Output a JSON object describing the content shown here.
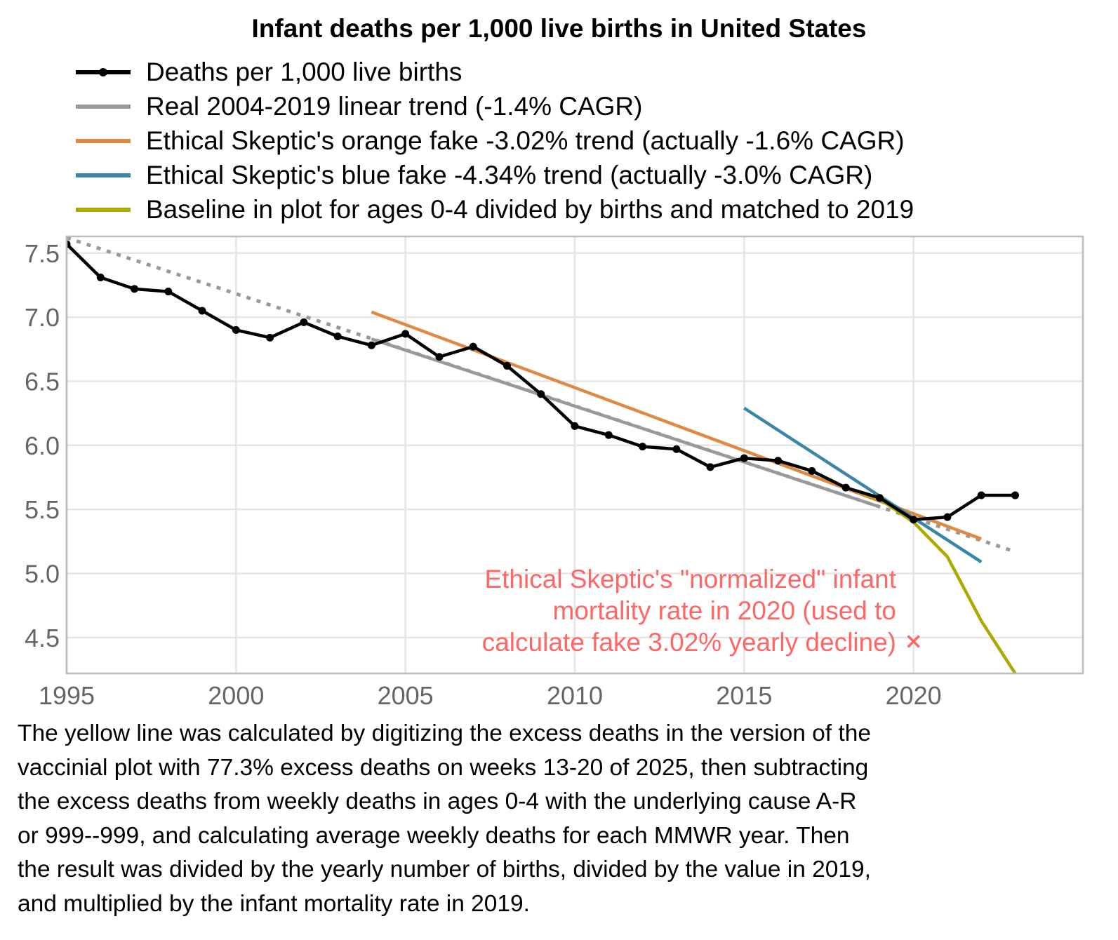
{
  "chart_data": {
    "type": "line",
    "title": "Infant deaths per 1,000 live births in United States",
    "xlabel": "",
    "ylabel": "",
    "xlim": [
      1995,
      2025
    ],
    "ylim": [
      4.22,
      7.63
    ],
    "grid": true,
    "legend_position": "top-left",
    "x_ticks": [
      1995,
      2000,
      2005,
      2010,
      2015,
      2020
    ],
    "x_tick_labels": [
      "1995",
      "2000",
      "2005",
      "2010",
      "2015",
      "2020"
    ],
    "y_ticks": [
      4.5,
      5.0,
      5.5,
      6.0,
      6.5,
      7.0,
      7.5
    ],
    "y_tick_labels": [
      "4.5",
      "5.0",
      "5.5",
      "6.0",
      "6.5",
      "7.0",
      "7.5"
    ],
    "series": [
      {
        "name": "Deaths per 1,000 live births",
        "color": "#000000",
        "style": "line-with-points",
        "x": [
          1995,
          1996,
          1997,
          1998,
          1999,
          2000,
          2001,
          2002,
          2003,
          2004,
          2005,
          2006,
          2007,
          2008,
          2009,
          2010,
          2011,
          2012,
          2013,
          2014,
          2015,
          2016,
          2017,
          2018,
          2019,
          2020,
          2021,
          2022,
          2023
        ],
        "values": [
          7.57,
          7.31,
          7.22,
          7.2,
          7.05,
          6.9,
          6.84,
          6.96,
          6.85,
          6.78,
          6.87,
          6.69,
          6.77,
          6.62,
          6.4,
          6.15,
          6.08,
          5.99,
          5.97,
          5.83,
          5.9,
          5.88,
          5.8,
          5.67,
          5.59,
          5.42,
          5.44,
          5.61,
          5.61
        ]
      },
      {
        "name": "Real 2004-2019 linear trend (-1.4% CAGR)",
        "color": "#999999",
        "style": "solid",
        "x": [
          2004,
          2019
        ],
        "values": [
          6.83,
          5.52
        ]
      },
      {
        "name": "Real 2004-2019 linear trend (extrapolated)",
        "color": "#999999",
        "style": "dotted",
        "legend": false,
        "x": [
          1995,
          2023
        ],
        "values": [
          7.62,
          5.17
        ]
      },
      {
        "name": "Ethical Skeptic's orange fake -3.02% trend (actually -1.6% CAGR)",
        "color": "#DD8A45",
        "style": "solid",
        "x": [
          2004,
          2022
        ],
        "values": [
          7.04,
          5.27
        ]
      },
      {
        "name": "Ethical Skeptic's blue fake -4.34% trend (actually -3.0% CAGR)",
        "color": "#3A86A8",
        "style": "solid",
        "x": [
          2015,
          2022
        ],
        "values": [
          6.29,
          5.09
        ]
      },
      {
        "name": "Baseline in plot for ages 0-4 divided by births and matched to 2019",
        "color": "#AAAA00",
        "style": "solid",
        "x": [
          2018,
          2019,
          2020,
          2021,
          2022,
          2023
        ],
        "values": [
          5.67,
          5.58,
          5.4,
          5.13,
          4.63,
          4.22
        ]
      }
    ],
    "annotations": [
      {
        "type": "marker",
        "symbol": "x",
        "x": 2020,
        "y": 4.47,
        "color": "#FF6666"
      },
      {
        "type": "text",
        "color": "#FF6666",
        "align": "right",
        "lines": [
          "Ethical Skeptic's \"normalized\" infant",
          "mortality rate in 2020 (used to",
          "calculate fake 3.02% yearly decline)"
        ]
      }
    ],
    "legend": [
      {
        "label": "Deaths per 1,000 live births",
        "color": "#000000",
        "point": true
      },
      {
        "label": "Real 2004-2019 linear trend (-1.4% CAGR)",
        "color": "#999999",
        "point": false
      },
      {
        "label": "Ethical Skeptic's orange fake -3.02% trend (actually -1.6% CAGR)",
        "color": "#DD8A45",
        "point": false
      },
      {
        "label": "Ethical Skeptic's blue fake -4.34% trend (actually -3.0% CAGR)",
        "color": "#3A86A8",
        "point": false
      },
      {
        "label": "Baseline in plot for ages 0-4 divided by births and matched to 2019",
        "color": "#AAAA00",
        "point": false
      }
    ],
    "caption": [
      "The yellow line was calculated by digitizing the excess deaths in the version of the",
      "vaccinial plot with 77.3% excess deaths on weeks 13-20 of 2025, then subtracting",
      "the excess deaths from weekly deaths in ages 0-4 with the underlying cause A-R",
      "or 999--999, and calculating average weekly deaths for each MMWR year. Then",
      "the result was divided by the yearly number of births, divided by the value in 2019,",
      "and multiplied by the infant mortality rate in 2019."
    ]
  },
  "colors": {
    "grid": "#E5E5E5",
    "panel_border": "#BBBBBB",
    "tick_label": "#666666",
    "annotation": "#FF6666"
  }
}
